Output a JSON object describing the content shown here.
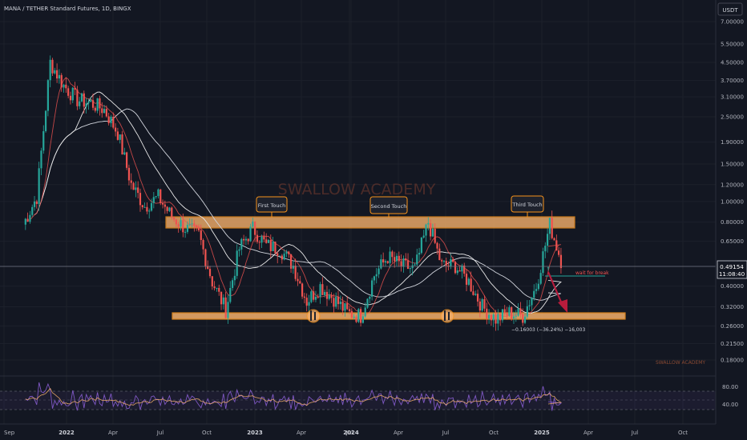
{
  "header": {
    "symbol_line": "MANA / TETHER Standard Futures, 1D, BINGX",
    "currency": "USDT"
  },
  "watermark": "SWALLOW ACADEMY",
  "footer_brand": "SWALLOW ACADEMY",
  "price_axis": {
    "ticks": [
      "7.00000",
      "5.50000",
      "4.50000",
      "3.70000",
      "3.10000",
      "2.50000",
      "1.90000",
      "1.50000",
      "1.20000",
      "1.00000",
      "0.80000",
      "0.65000",
      "0.40000",
      "0.32000",
      "0.26000",
      "0.21500",
      "0.18000"
    ],
    "current_price": "0.49154",
    "countdown": "11:08:40"
  },
  "rsi_axis": {
    "ticks": [
      "80.00",
      "40.00"
    ]
  },
  "time_axis": {
    "ticks": [
      "Sep",
      "2022",
      "Apr",
      "Jul",
      "Oct",
      "2023",
      "Apr",
      "Jul",
      "2024",
      "Apr",
      "Jul",
      "Oct",
      "2025",
      "Apr",
      "Jul",
      "Oct"
    ]
  },
  "annotations": {
    "first_touch": "First Touch",
    "second_touch": "Second Touch",
    "third_touch": "Third Touch",
    "wait_label": "wait for break",
    "measure_label": "−0.16003 (−36.24%) −16,003"
  },
  "colors": {
    "background": "#131722",
    "up": "#26a69a",
    "down": "#ef5350",
    "zone": "#f5b06b",
    "rsi": "#7e57c2",
    "accent": "#f7931a"
  },
  "chart_data": {
    "type": "candlestick",
    "title": "MANA / TETHER Standard Futures, 1D, BINGX",
    "scale": "log",
    "ylim": [
      0.16,
      7.6
    ],
    "x": [
      "Sep 2021",
      "Oct 2021",
      "Nov 2021",
      "Dec 2021",
      "Jan 2022",
      "Feb 2022",
      "Mar 2022",
      "Apr 2022",
      "May 2022",
      "Jun 2022",
      "Jul 2022",
      "Aug 2022",
      "Sep 2022",
      "Oct 2022",
      "Nov 2022",
      "Dec 2022",
      "Jan 2023",
      "Feb 2023",
      "Mar 2023",
      "Apr 2023",
      "May 2023",
      "Jun 2023",
      "Jul 2023",
      "Aug 2023",
      "Sep 2023",
      "Oct 2023",
      "Nov 2023",
      "Dec 2023",
      "Jan 2024",
      "Feb 2024",
      "Mar 2024",
      "Apr 2024",
      "May 2024",
      "Jun 2024",
      "Jul 2024",
      "Aug 2024",
      "Sep 2024",
      "Oct 2024",
      "Nov 2024",
      "Dec 2024",
      "Jan 2025"
    ],
    "close": [
      0.78,
      1.05,
      4.5,
      3.5,
      3.0,
      2.9,
      2.7,
      2.1,
      1.2,
      0.95,
      1.05,
      0.85,
      0.75,
      0.7,
      0.42,
      0.31,
      0.6,
      0.75,
      0.62,
      0.6,
      0.5,
      0.34,
      0.4,
      0.35,
      0.3,
      0.29,
      0.45,
      0.55,
      0.5,
      0.48,
      0.8,
      0.5,
      0.5,
      0.42,
      0.32,
      0.28,
      0.3,
      0.29,
      0.4,
      0.78,
      0.49
    ],
    "resistance_zone": [
      0.75,
      0.85
    ],
    "support_zone": [
      0.28,
      0.3
    ],
    "rsi_levels": [
      70,
      50,
      30
    ],
    "grid": true
  }
}
